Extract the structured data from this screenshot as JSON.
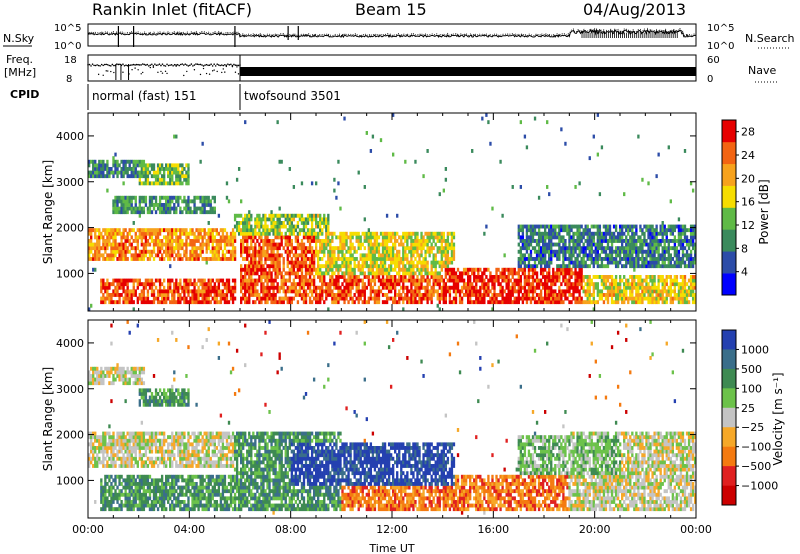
{
  "header": {
    "station": "Rankin Inlet (fitACF)",
    "beam": "Beam 15",
    "date": "04/Aug/2013"
  },
  "top_panels": {
    "nsky_label": "N.Sky",
    "nsearch_label": "N.Search",
    "freq_label_1": "Freq.",
    "freq_label_2": "[MHz]",
    "nave_label": "Nave",
    "cpid_label": "CPID",
    "noise_ticks": [
      "10^5",
      "10^0"
    ],
    "freq_ticks": [
      "18",
      "8"
    ],
    "nave_ticks": [
      "60",
      "0"
    ],
    "cpid_modes": [
      {
        "name": "normal (fast) 151",
        "start_h": 0,
        "end_h": 6
      },
      {
        "name": "twofsound 3501",
        "start_h": 6,
        "end_h": 24
      }
    ]
  },
  "chart_data": [
    {
      "type": "heatmap",
      "panel": "power",
      "xlabel": "",
      "ylabel": "Slant Range [km]",
      "xlim": [
        0,
        24
      ],
      "ylim": [
        180,
        4500
      ],
      "yticks": [
        1000,
        2000,
        3000,
        4000
      ],
      "colorbar": {
        "label": "Power [dB]",
        "ticks": [
          4,
          8,
          12,
          16,
          20,
          24,
          28
        ],
        "range": [
          0,
          30
        ],
        "colors": [
          "#0000ff",
          "#2c4ca8",
          "#3a8a5c",
          "#5fba46",
          "#f6dd00",
          "#f7a21c",
          "#f36412",
          "#e60000"
        ]
      },
      "regions": [
        {
          "t": [
            0.0,
            2.2
          ],
          "r": [
            3100,
            3450
          ],
          "v": 9
        },
        {
          "t": [
            0.0,
            5.8
          ],
          "r": [
            1250,
            1950
          ],
          "v": 22
        },
        {
          "t": [
            0.5,
            5.8
          ],
          "r": [
            300,
            900
          ],
          "v": 26
        },
        {
          "t": [
            1.0,
            5.0
          ],
          "r": [
            2300,
            2700
          ],
          "v": 10
        },
        {
          "t": [
            2.0,
            4.0
          ],
          "r": [
            2900,
            3400
          ],
          "v": 13
        },
        {
          "t": [
            5.8,
            9.5
          ],
          "r": [
            1800,
            2300
          ],
          "v": 14
        },
        {
          "t": [
            6.0,
            14.0
          ],
          "r": [
            300,
            1800
          ],
          "v": 25
        },
        {
          "t": [
            9.0,
            14.5
          ],
          "r": [
            1000,
            1900
          ],
          "v": 17
        },
        {
          "t": [
            14.0,
            19.5
          ],
          "r": [
            300,
            1100
          ],
          "v": 27
        },
        {
          "t": [
            17.0,
            24.0
          ],
          "r": [
            1100,
            2100
          ],
          "v": 8
        },
        {
          "t": [
            19.5,
            24.0
          ],
          "r": [
            300,
            1000
          ],
          "v": 18
        }
      ]
    },
    {
      "type": "heatmap",
      "panel": "velocity",
      "xlabel": "Time UT",
      "ylabel": "Slant Range [km]",
      "xlim": [
        0,
        24
      ],
      "ylim": [
        180,
        4500
      ],
      "xticks": [
        "00:00",
        "04:00",
        "08:00",
        "12:00",
        "16:00",
        "20:00",
        "00:00"
      ],
      "yticks": [
        1000,
        2000,
        3000,
        4000
      ],
      "colorbar": {
        "label": "Velocity [m s⁻¹]",
        "ticks": [
          "1000",
          "500",
          "100",
          "25",
          "−25",
          "−100",
          "−500",
          "−1000"
        ],
        "colors": [
          "#2440b0",
          "#3a6e8a",
          "#3e8a52",
          "#6cc24a",
          "#c4c4c4",
          "#f6a828",
          "#f47a10",
          "#e02020",
          "#cc0000"
        ]
      },
      "regions": [
        {
          "t": [
            0.0,
            2.2
          ],
          "r": [
            3100,
            3450
          ],
          "v": 4
        },
        {
          "t": [
            0.0,
            5.8
          ],
          "r": [
            1250,
            2100
          ],
          "v": 4
        },
        {
          "t": [
            0.5,
            5.8
          ],
          "r": [
            300,
            1100
          ],
          "v": 2
        },
        {
          "t": [
            2.0,
            4.0
          ],
          "r": [
            2600,
            3000
          ],
          "v": 2
        },
        {
          "t": [
            5.8,
            10.0
          ],
          "r": [
            300,
            2100
          ],
          "v": 2
        },
        {
          "t": [
            8.0,
            14.5
          ],
          "r": [
            900,
            1800
          ],
          "v": 0
        },
        {
          "t": [
            10.0,
            17.0
          ],
          "r": [
            300,
            900
          ],
          "v": 6
        },
        {
          "t": [
            14.5,
            19.5
          ],
          "r": [
            300,
            1100
          ],
          "v": 6
        },
        {
          "t": [
            19.0,
            24.0
          ],
          "r": [
            300,
            2100
          ],
          "v": 4
        },
        {
          "t": [
            17.0,
            21.0
          ],
          "r": [
            1100,
            2000
          ],
          "v": 3
        }
      ]
    }
  ]
}
